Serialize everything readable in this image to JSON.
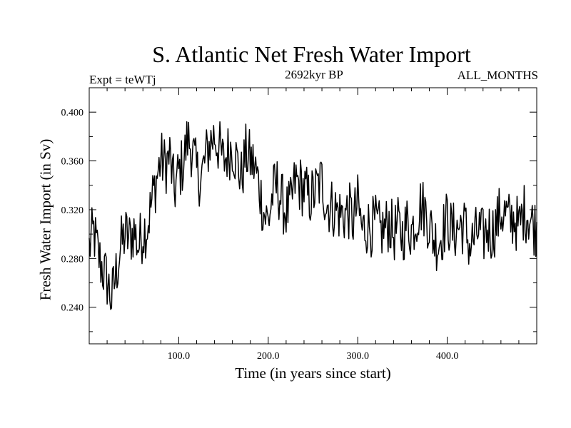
{
  "chart_data": {
    "type": "line",
    "title": "S. Atlantic Net Fresh Water Import",
    "subtitle_left": "Expt = teWTj",
    "subtitle_center": "2692kyr BP",
    "subtitle_right": "ALL_MONTHS",
    "xlabel": "Time (in years since start)",
    "ylabel": "Fresh Water Import (in Sv)",
    "xlim": [
      0,
      500
    ],
    "ylim": [
      0.21,
      0.42
    ],
    "x_tick_labels": [
      "100.0",
      "200.0",
      "300.0",
      "400.0"
    ],
    "x_tick_values": [
      100,
      200,
      300,
      400
    ],
    "y_tick_labels": [
      "0.240",
      "0.280",
      "0.320",
      "0.360",
      "0.400"
    ],
    "y_tick_values": [
      0.24,
      0.28,
      0.32,
      0.36,
      0.4
    ],
    "grid": false,
    "series": [
      {
        "name": "fresh_water_import",
        "x_start": 0,
        "x_step": 5,
        "values": [
          0.289,
          0.302,
          0.283,
          0.271,
          0.262,
          0.246,
          0.268,
          0.289,
          0.3,
          0.296,
          0.303,
          0.29,
          0.302,
          0.307,
          0.327,
          0.345,
          0.361,
          0.356,
          0.364,
          0.335,
          0.35,
          0.358,
          0.378,
          0.37,
          0.35,
          0.346,
          0.362,
          0.375,
          0.381,
          0.371,
          0.359,
          0.367,
          0.372,
          0.359,
          0.346,
          0.366,
          0.361,
          0.355,
          0.339,
          0.318,
          0.31,
          0.333,
          0.34,
          0.327,
          0.318,
          0.322,
          0.343,
          0.341,
          0.337,
          0.329,
          0.332,
          0.338,
          0.344,
          0.325,
          0.323,
          0.32,
          0.317,
          0.316,
          0.319,
          0.311,
          0.325,
          0.303,
          0.307,
          0.306,
          0.308,
          0.302,
          0.304,
          0.31,
          0.3,
          0.306,
          0.299,
          0.309,
          0.303,
          0.312,
          0.324,
          0.32,
          0.308,
          0.296,
          0.293,
          0.302,
          0.313,
          0.302,
          0.303,
          0.308,
          0.306,
          0.29,
          0.296,
          0.303,
          0.297,
          0.305,
          0.301,
          0.309,
          0.318,
          0.316,
          0.31,
          0.314,
          0.304,
          0.318,
          0.317,
          0.309,
          0.305
        ]
      }
    ]
  }
}
